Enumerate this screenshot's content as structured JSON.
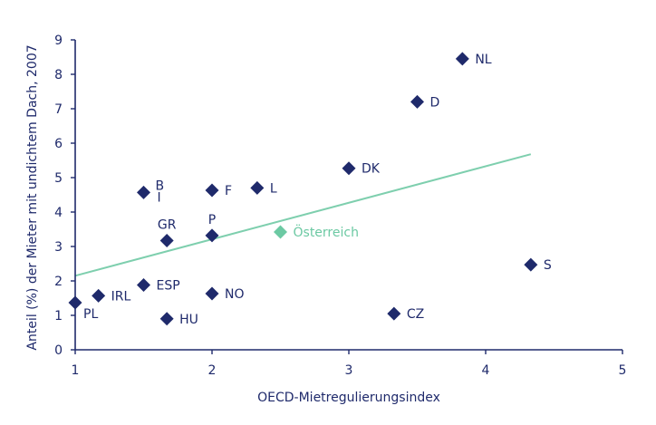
{
  "colors": {
    "axis": "#1f2a6b",
    "marker": "#1f2a6b",
    "highlight": "#6cc9a3",
    "trend": "#7ecfae"
  },
  "chart_data": {
    "type": "scatter",
    "xlabel": "OECD-Mietregulierungsindex",
    "ylabel": "Anteil (%) der Mieter mit undichtem Dach, 2007",
    "xlim": [
      1,
      5
    ],
    "ylim": [
      0,
      9
    ],
    "xticks": [
      "1",
      "2",
      "3",
      "4",
      "5"
    ],
    "yticks": [
      "0",
      "1",
      "2",
      "3",
      "4",
      "5",
      "6",
      "7",
      "8",
      "9"
    ],
    "grid": false,
    "legend": "none",
    "points": [
      {
        "label": "NL",
        "x": 3.83,
        "y": 8.45,
        "anchor": "right"
      },
      {
        "label": "D",
        "x": 3.5,
        "y": 7.2,
        "anchor": "right"
      },
      {
        "label": "DK",
        "x": 3.0,
        "y": 5.27,
        "anchor": "right"
      },
      {
        "label": "B",
        "x": 1.5,
        "y": 4.57,
        "anchor": "top-right"
      },
      {
        "label": "I",
        "x": 1.5,
        "y": 4.57,
        "anchor": "below-right"
      },
      {
        "label": "F",
        "x": 2.0,
        "y": 4.63,
        "anchor": "right"
      },
      {
        "label": "L",
        "x": 2.33,
        "y": 4.7,
        "anchor": "right"
      },
      {
        "label": "GR",
        "x": 1.67,
        "y": 3.17,
        "anchor": "above"
      },
      {
        "label": "P",
        "x": 2.0,
        "y": 3.32,
        "anchor": "above"
      },
      {
        "label": "Österreich",
        "x": 2.5,
        "y": 3.42,
        "anchor": "right",
        "highlight": true
      },
      {
        "label": "S",
        "x": 4.33,
        "y": 2.47,
        "anchor": "right"
      },
      {
        "label": "ESP",
        "x": 1.5,
        "y": 1.88,
        "anchor": "right"
      },
      {
        "label": "NO",
        "x": 2.0,
        "y": 1.63,
        "anchor": "right"
      },
      {
        "label": "IRL",
        "x": 1.17,
        "y": 1.57,
        "anchor": "right"
      },
      {
        "label": "PL",
        "x": 1.0,
        "y": 1.37,
        "anchor": "below-right"
      },
      {
        "label": "CZ",
        "x": 3.33,
        "y": 1.05,
        "anchor": "right"
      },
      {
        "label": "HU",
        "x": 1.67,
        "y": 0.9,
        "anchor": "right"
      }
    ],
    "trendline": {
      "x": [
        1,
        4.33
      ],
      "y": [
        2.15,
        5.68
      ]
    }
  }
}
